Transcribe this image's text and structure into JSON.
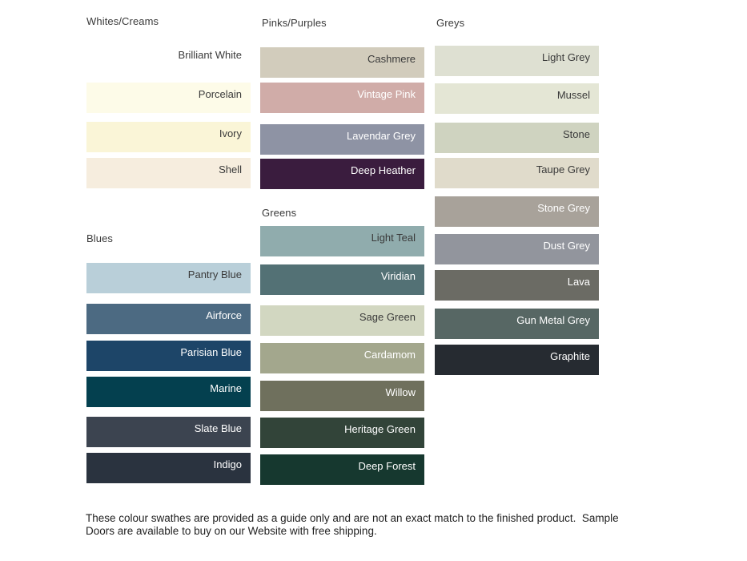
{
  "groups": [
    {
      "id": "whites-creams",
      "title": "Whites/Creams",
      "swatches": [
        {
          "label": "Brilliant White",
          "color": "#FFFFFF",
          "text_color": "#3a3a3a"
        },
        {
          "label": "Porcelain",
          "color": "#FDFBE8",
          "text_color": "#3a3a3a"
        },
        {
          "label": "Ivory",
          "color": "#FAF5D7",
          "text_color": "#3a3a3a"
        },
        {
          "label": "Shell",
          "color": "#F6EDDE",
          "text_color": "#3a3a3a"
        }
      ]
    },
    {
      "id": "blues",
      "title": "Blues",
      "swatches": [
        {
          "label": "Pantry Blue",
          "color": "#B9CFD9",
          "text_color": "#3a3a3a"
        },
        {
          "label": "Airforce",
          "color": "#4C6A82",
          "text_color": "#FFFFFF"
        },
        {
          "label": "Parisian Blue",
          "color": "#1D4568",
          "text_color": "#FFFFFF"
        },
        {
          "label": "Marine",
          "color": "#04404F",
          "text_color": "#FFFFFF"
        },
        {
          "label": "Slate Blue",
          "color": "#3C4450",
          "text_color": "#FFFFFF"
        },
        {
          "label": "Indigo",
          "color": "#2A333F",
          "text_color": "#FFFFFF"
        }
      ]
    },
    {
      "id": "pinks-purples",
      "title": "Pinks/Purples",
      "swatches": [
        {
          "label": "Cashmere",
          "color": "#D2CCBC",
          "text_color": "#3a3a3a"
        },
        {
          "label": "Vintage Pink",
          "color": "#D0ACA8",
          "text_color": "#FFFFFF"
        },
        {
          "label": "Lavendar Grey",
          "color": "#8E93A4",
          "text_color": "#FFFFFF"
        },
        {
          "label": "Deep Heather",
          "color": "#3A1C3E",
          "text_color": "#FFFFFF"
        }
      ]
    },
    {
      "id": "greens",
      "title": "Greens",
      "swatches": [
        {
          "label": "Light Teal",
          "color": "#90ACAD",
          "text_color": "#3a3a3a"
        },
        {
          "label": "Viridian",
          "color": "#537175",
          "text_color": "#FFFFFF"
        },
        {
          "label": "Sage Green",
          "color": "#D2D7C1",
          "text_color": "#3a3a3a"
        },
        {
          "label": "Cardamom",
          "color": "#A3A78D",
          "text_color": "#FFFFFF"
        },
        {
          "label": "Willow",
          "color": "#6F705D",
          "text_color": "#FFFFFF"
        },
        {
          "label": "Heritage Green",
          "color": "#324439",
          "text_color": "#FFFFFF"
        },
        {
          "label": "Deep Forest",
          "color": "#16382F",
          "text_color": "#FFFFFF"
        }
      ]
    },
    {
      "id": "greys",
      "title": "Greys",
      "swatches": [
        {
          "label": "Light Grey",
          "color": "#DEE0D2",
          "text_color": "#3a3a3a"
        },
        {
          "label": "Mussel",
          "color": "#E4E6D5",
          "text_color": "#3a3a3a"
        },
        {
          "label": "Stone",
          "color": "#CFD3C0",
          "text_color": "#3a3a3a"
        },
        {
          "label": "Taupe Grey",
          "color": "#E0DBCB",
          "text_color": "#3a3a3a"
        },
        {
          "label": "Stone Grey",
          "color": "#A8A29A",
          "text_color": "#FFFFFF"
        },
        {
          "label": "Dust Grey",
          "color": "#92959D",
          "text_color": "#FFFFFF"
        },
        {
          "label": "Lava",
          "color": "#6B6B64",
          "text_color": "#FFFFFF"
        },
        {
          "label": "Gun Metal Grey",
          "color": "#576764",
          "text_color": "#FFFFFF"
        },
        {
          "label": "Graphite",
          "color": "#262B31",
          "text_color": "#FFFFFF"
        }
      ]
    }
  ],
  "footnote": {
    "line1": "These colour swathes are provided as a guide only and are not an exact match to the finished product.  Sample",
    "line2": "Doors are available to buy on our Website with free shipping."
  }
}
